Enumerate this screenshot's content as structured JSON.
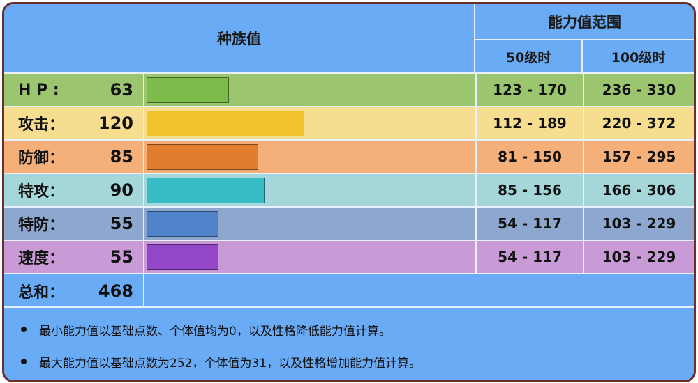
{
  "header": {
    "base_stats": "种族值",
    "stat_range": "能力值范围",
    "lv50": "50级时",
    "lv100": "100级时"
  },
  "colors": {
    "hp": {
      "row": "#9cc56f",
      "bar": "#7dbb4a"
    },
    "atk": {
      "row": "#f7dd8f",
      "bar": "#f2c12c"
    },
    "def": {
      "row": "#f5b07a",
      "bar": "#e07d2f"
    },
    "spa": {
      "row": "#a5d7da",
      "bar": "#38bcc6"
    },
    "spd": {
      "row": "#8ea7cf",
      "bar": "#4f82c8"
    },
    "spe": {
      "row": "#c99bd6",
      "bar": "#9446c9"
    }
  },
  "stats": [
    {
      "label": "H P :",
      "value": "63",
      "fraction": 0.252,
      "lv50": "123 - 170",
      "lv100": "236 - 330"
    },
    {
      "label": "攻击：",
      "value": "120",
      "fraction": 0.48,
      "lv50": "112 - 189",
      "lv100": "220 - 372"
    },
    {
      "label": "防御：",
      "value": "85",
      "fraction": 0.34,
      "lv50": "81 - 150",
      "lv100": "157 - 295"
    },
    {
      "label": "特攻：",
      "value": "90",
      "fraction": 0.36,
      "lv50": "85 - 156",
      "lv100": "166 - 306"
    },
    {
      "label": "特防：",
      "value": "55",
      "fraction": 0.22,
      "lv50": "54 - 117",
      "lv100": "103 - 229"
    },
    {
      "label": "速度：",
      "value": "55",
      "fraction": 0.22,
      "lv50": "54 - 117",
      "lv100": "103 - 229"
    }
  ],
  "total": {
    "label": "总和：",
    "value": "468"
  },
  "notes": [
    "最小能力值以基础点数、个体值均为0，以及性格降低能力值计算。",
    "最大能力值以基础点数为252，个体值为31，以及性格增加能力值计算。"
  ]
}
